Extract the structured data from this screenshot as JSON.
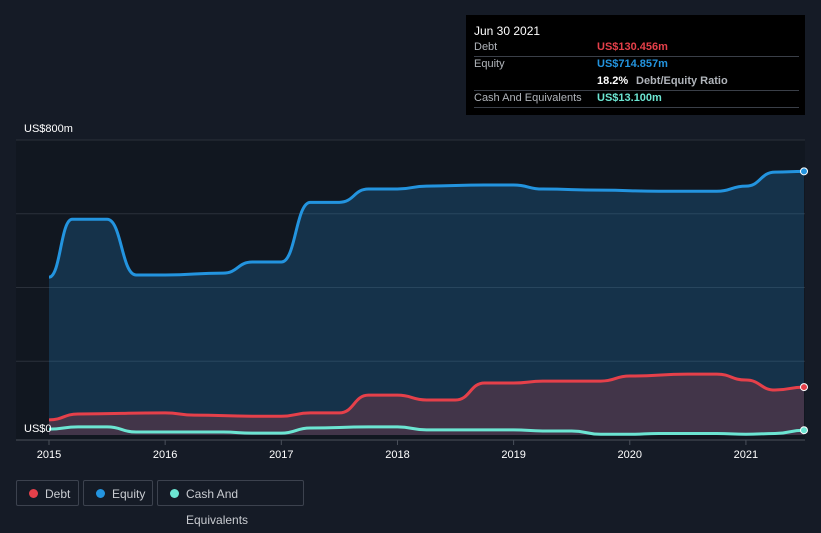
{
  "tooltip": {
    "date": "Jun 30 2021",
    "debt_label": "Debt",
    "debt_value": "US$130.456m",
    "equity_label": "Equity",
    "equity_value": "US$714.857m",
    "ratio_value": "18.2%",
    "ratio_label": "Debt/Equity Ratio",
    "cash_label": "Cash And Equivalents",
    "cash_value": "US$13.100m"
  },
  "legend": [
    {
      "label": "Debt",
      "color": "#e5404a"
    },
    {
      "label": "Equity",
      "color": "#2394df"
    },
    {
      "label": "Cash And Equivalents",
      "color": "#6ce5d2"
    }
  ],
  "chart_data": {
    "type": "area",
    "ylabel_top": "US$800m",
    "ylabel_bottom": "US$0",
    "ylim": [
      0,
      800
    ],
    "xlim": [
      2015,
      2021.5
    ],
    "xticks": [
      "2015",
      "2016",
      "2017",
      "2018",
      "2019",
      "2020",
      "2021"
    ],
    "series": [
      {
        "name": "Equity",
        "color": "#2394df",
        "x": [
          2015,
          2015.2,
          2015.5,
          2015.75,
          2016,
          2016.5,
          2016.75,
          2017,
          2017.25,
          2017.5,
          2017.75,
          2018,
          2018.25,
          2018.75,
          2019,
          2019.25,
          2019.75,
          2020.25,
          2020.75,
          2021,
          2021.25,
          2021.5
        ],
        "values": [
          428,
          585,
          585,
          434,
          434,
          439,
          469,
          469,
          631,
          631,
          667,
          667,
          675,
          678,
          678,
          667,
          664,
          661,
          661,
          675,
          713,
          715
        ]
      },
      {
        "name": "Debt",
        "color": "#e5404a",
        "x": [
          2015,
          2015.25,
          2016,
          2016.25,
          2016.75,
          2017,
          2017.25,
          2017.5,
          2017.75,
          2018,
          2018.25,
          2018.5,
          2018.75,
          2019,
          2019.25,
          2019.75,
          2020,
          2020.5,
          2020.75,
          2021,
          2021.25,
          2021.5
        ],
        "values": [
          41,
          57,
          60,
          54,
          51,
          51,
          60,
          60,
          108,
          108,
          95,
          95,
          141,
          141,
          146,
          146,
          160,
          165,
          165,
          149,
          122,
          130
        ]
      },
      {
        "name": "Cash And Equivalents",
        "color": "#6ce5d2",
        "x": [
          2015,
          2015.25,
          2015.5,
          2015.75,
          2016.5,
          2016.75,
          2017,
          2017.25,
          2017.75,
          2018,
          2018.25,
          2019,
          2019.25,
          2019.5,
          2019.75,
          2020,
          2020.25,
          2020.75,
          2021,
          2021.25,
          2021.5
        ],
        "values": [
          16,
          22,
          22,
          8,
          8,
          5,
          5,
          19,
          22,
          22,
          14,
          14,
          11,
          11,
          2,
          2,
          4,
          4,
          2,
          4,
          13
        ]
      }
    ]
  }
}
